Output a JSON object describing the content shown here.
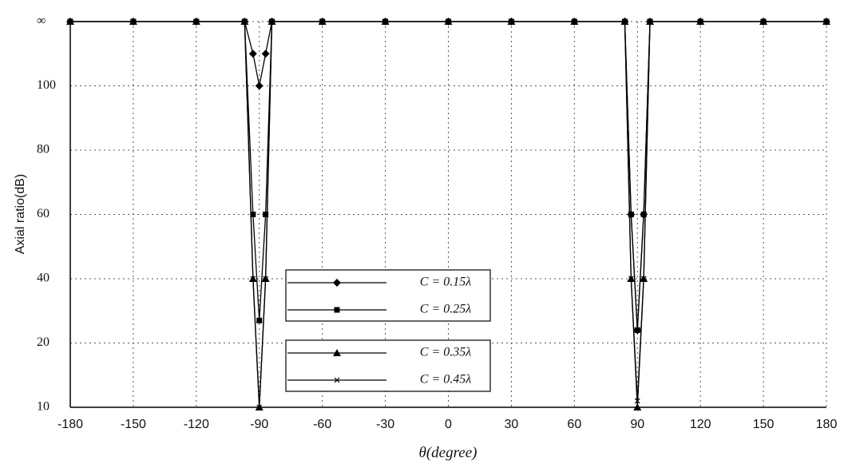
{
  "chart_data": {
    "type": "line",
    "x_label": "θ(degree)",
    "y_label": "Axial ratio(dB)",
    "x": [
      -180,
      -150,
      -120,
      -97,
      -93,
      -90,
      -87,
      -84,
      -60,
      -30,
      0,
      30,
      60,
      84,
      87,
      90,
      93,
      96,
      120,
      150,
      180
    ],
    "xlim": [
      -180,
      180
    ],
    "xticks": [
      -180,
      -150,
      -120,
      -90,
      -60,
      -30,
      0,
      30,
      60,
      90,
      120,
      150,
      180
    ],
    "ylim": [
      10,
      120
    ],
    "yticks": [
      10,
      20,
      40,
      60,
      80,
      100,
      {
        "value": 120,
        "label": "∞"
      }
    ],
    "grid": true,
    "series": [
      {
        "name": "C = 0.15λ",
        "color": "#000000",
        "marker": "diamond",
        "values": [
          120,
          120,
          120,
          120,
          110,
          100,
          110,
          120,
          120,
          120,
          120,
          120,
          120,
          120,
          60,
          24,
          60,
          120,
          120,
          120,
          120
        ]
      },
      {
        "name": "C = 0.25λ",
        "color": "#000000",
        "marker": "square",
        "values": [
          120,
          120,
          120,
          120,
          60,
          27,
          60,
          120,
          120,
          120,
          120,
          120,
          120,
          120,
          60,
          24,
          60,
          120,
          120,
          120,
          120
        ]
      },
      {
        "name": "C = 0.35λ",
        "color": "#000000",
        "marker": "triangle",
        "values": [
          120,
          120,
          120,
          120,
          40,
          10,
          40,
          120,
          120,
          120,
          120,
          120,
          120,
          120,
          40,
          10,
          40,
          120,
          120,
          120,
          120
        ]
      },
      {
        "name": "C = 0.45λ",
        "color": "#000000",
        "marker": "x",
        "values": [
          120,
          120,
          120,
          120,
          40,
          10,
          40,
          120,
          120,
          120,
          120,
          120,
          120,
          120,
          40,
          11,
          40,
          120,
          120,
          120,
          120
        ]
      }
    ]
  }
}
